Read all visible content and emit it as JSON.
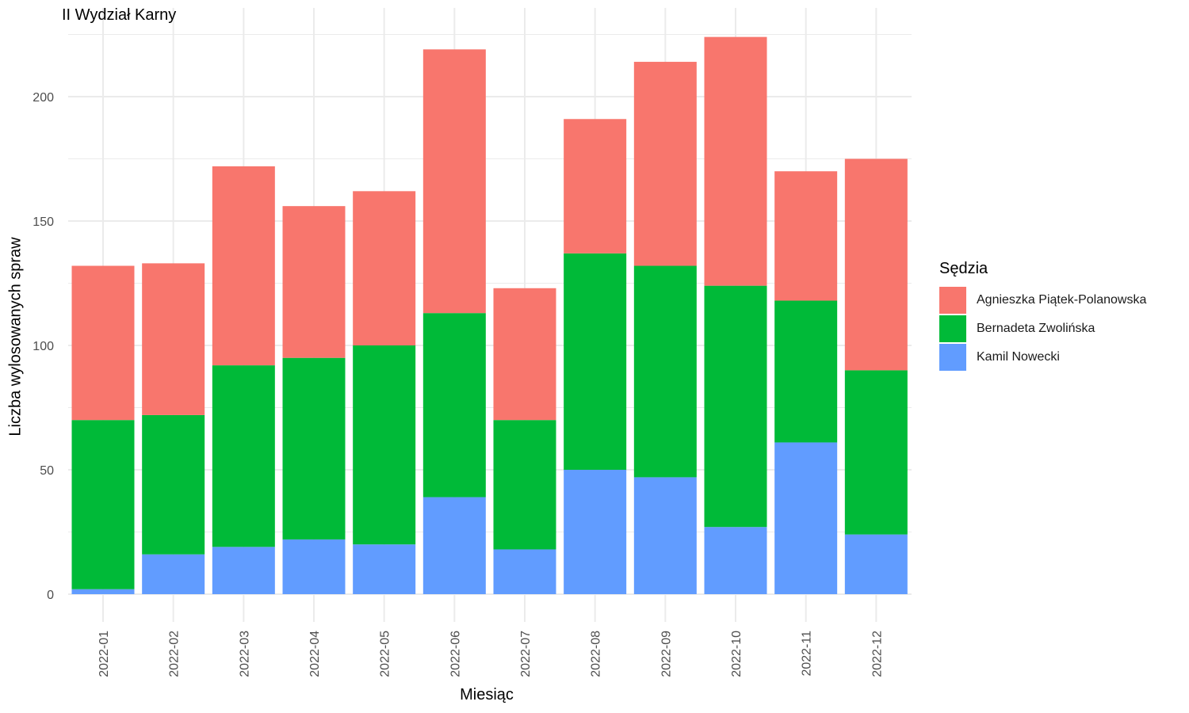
{
  "chart_data": {
    "type": "bar",
    "stacked": true,
    "title": "II Wydział Karny",
    "xlabel": "Miesiąc",
    "ylabel": "Liczba wylosowanych spraw",
    "ylim": [
      0,
      225
    ],
    "yticks": [
      0,
      50,
      100,
      150,
      200
    ],
    "grid": true,
    "legend_position": "right",
    "legend_title": "Sędzia",
    "categories": [
      "2022-01",
      "2022-02",
      "2022-03",
      "2022-04",
      "2022-05",
      "2022-06",
      "2022-07",
      "2022-08",
      "2022-09",
      "2022-10",
      "2022-11",
      "2022-12"
    ],
    "series": [
      {
        "name": "Kamil Nowecki",
        "color": "#619CFF",
        "values": [
          2,
          16,
          19,
          22,
          20,
          39,
          18,
          50,
          47,
          27,
          61,
          24
        ]
      },
      {
        "name": "Bernadeta Zwolińska",
        "color": "#00BA38",
        "values": [
          68,
          56,
          73,
          73,
          80,
          74,
          52,
          87,
          85,
          97,
          57,
          66
        ]
      },
      {
        "name": "Agnieszka Piątek-Polanowska",
        "color": "#F8766D",
        "values": [
          62,
          61,
          80,
          61,
          62,
          106,
          53,
          54,
          82,
          100,
          52,
          85
        ]
      }
    ],
    "legend_order": [
      "Agnieszka Piątek-Polanowska",
      "Bernadeta Zwolińska",
      "Kamil Nowecki"
    ]
  }
}
